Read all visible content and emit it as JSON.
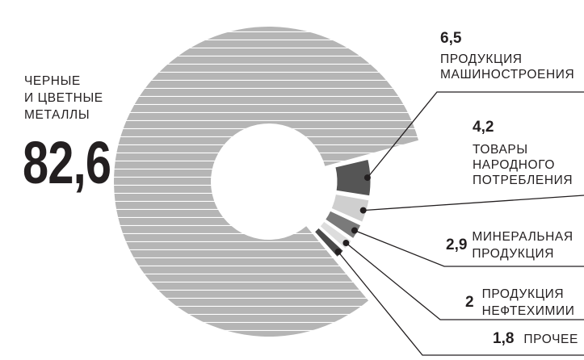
{
  "chart_data": {
    "type": "pie",
    "donut": true,
    "slices": [
      {
        "label": "ЧЕРНЫЕ И ЦВЕТНЫЕ МЕТАЛЛЫ",
        "label_lines": [
          "ЧЕРНЫЕ",
          "И ЦВЕТНЫЕ",
          "МЕТАЛЛЫ"
        ],
        "value_text": "82,6",
        "value": 82.6,
        "color": "#b3b3b3",
        "exploded": false
      },
      {
        "label": "ПРОДУКЦИЯ МАШИНОСТРОЕНИЯ",
        "label_lines": [
          "ПРОДУКЦИЯ",
          "МАШИНОСТРОЕНИЯ"
        ],
        "value_text": "6,5",
        "value": 6.5,
        "color": "#555555",
        "exploded": true
      },
      {
        "label": "ТОВАРЫ НАРОДНОГО ПОТРЕБЛЕНИЯ",
        "label_lines": [
          "ТОВАРЫ",
          "НАРОДНОГО",
          "ПОТРЕБЛЕНИЯ"
        ],
        "value_text": "4,2",
        "value": 4.2,
        "color": "#cfcfcf",
        "exploded": true
      },
      {
        "label": "МИНЕРАЛЬНАЯ ПРОДУКЦИЯ",
        "label_lines": [
          "МИНЕРАЛЬНАЯ",
          "ПРОДУКЦИЯ"
        ],
        "value_text": "2,9",
        "value": 2.9,
        "color": "#7a7a7a",
        "exploded": true
      },
      {
        "label": "ПРОДУКЦИЯ НЕФТЕХИМИИ",
        "label_lines": [
          "ПРОДУКЦИЯ",
          "НЕФТЕХИМИИ"
        ],
        "value_text": "2",
        "value": 2.0,
        "color": "#dddddd",
        "exploded": true
      },
      {
        "label": "ПРОЧЕЕ",
        "label_lines": [
          "ПРОЧЕЕ"
        ],
        "value_text": "1,8",
        "value": 1.8,
        "color": "#4a4a4a",
        "exploded": true
      }
    ]
  }
}
